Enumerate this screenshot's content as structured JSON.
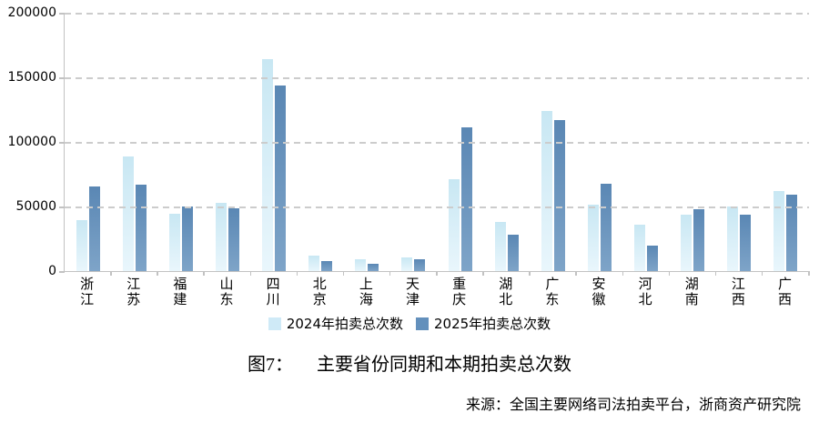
{
  "figure": {
    "caption_prefix": "图7：",
    "caption_text": "主要省份同期和本期拍卖总次数",
    "source": "来源：全国主要网络司法拍卖平台，浙商资产研究院"
  },
  "chart_data": {
    "type": "bar",
    "title": "图7： 主要省份同期和本期拍卖总次数",
    "xlabel": "",
    "ylabel": "",
    "ylim": [
      0,
      200000
    ],
    "yticks": [
      0,
      50000,
      100000,
      150000,
      200000
    ],
    "grid": "horizontal-dashed",
    "legend_position": "bottom-center",
    "categories": [
      "浙江",
      "江苏",
      "福建",
      "山东",
      "四川",
      "北京",
      "上海",
      "天津",
      "重庆",
      "湖北",
      "广东",
      "安徽",
      "河北",
      "湖南",
      "江西",
      "广西"
    ],
    "series": [
      {
        "name": "2024年拍卖总次数",
        "legend_color": "#cfeaf7",
        "color_top": "#c8e7f3",
        "color_bottom": "#e9f6fc",
        "values": [
          39500,
          88500,
          44500,
          53000,
          164000,
          12000,
          9200,
          10600,
          71500,
          38000,
          124000,
          51500,
          36000,
          44000,
          50000,
          62000
        ]
      },
      {
        "name": "2025年拍卖总次数",
        "legend_color": "#6390bc",
        "color_top": "#5a87b4",
        "color_bottom": "#7ea4c8",
        "values": [
          65600,
          67000,
          50000,
          48500,
          143500,
          7500,
          5700,
          8900,
          111500,
          28500,
          117000,
          67500,
          20000,
          47700,
          43500,
          59000
        ]
      }
    ],
    "axis_color": "#c2c2c2",
    "gridline_color": "#cccccc"
  }
}
